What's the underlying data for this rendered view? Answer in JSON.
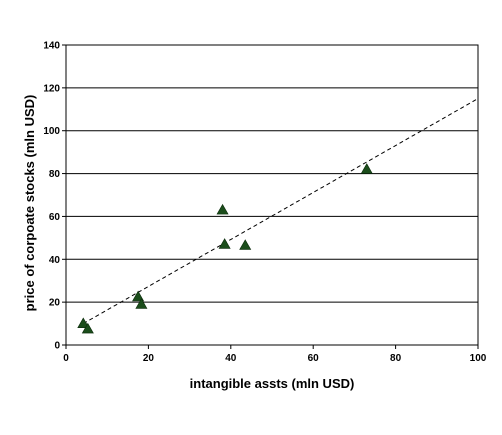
{
  "chart_data": {
    "type": "scatter",
    "title": "",
    "xlabel": "intangible assts (mln USD)",
    "ylabel": "price of corpoate stocks (mln USD)",
    "xlim": [
      0,
      100
    ],
    "ylim": [
      0,
      140
    ],
    "x_ticks": [
      0,
      20,
      40,
      60,
      80,
      100
    ],
    "y_ticks": [
      0,
      20,
      40,
      60,
      80,
      100,
      120,
      140
    ],
    "grid": "horizontal",
    "legend": "none",
    "series": [
      {
        "marker": "triangle",
        "color": "#1b4d1b",
        "points": [
          {
            "x": 4.2,
            "y": 10
          },
          {
            "x": 5.3,
            "y": 7.5
          },
          {
            "x": 17.5,
            "y": 22.5
          },
          {
            "x": 18.3,
            "y": 19
          },
          {
            "x": 38.0,
            "y": 63
          },
          {
            "x": 38.5,
            "y": 47
          },
          {
            "x": 43.5,
            "y": 46.5
          },
          {
            "x": 73.0,
            "y": 82
          }
        ]
      }
    ],
    "trendline": {
      "style": "dashed",
      "color": "#000000",
      "x": [
        4.2,
        100
      ],
      "y": [
        10,
        115
      ]
    }
  }
}
